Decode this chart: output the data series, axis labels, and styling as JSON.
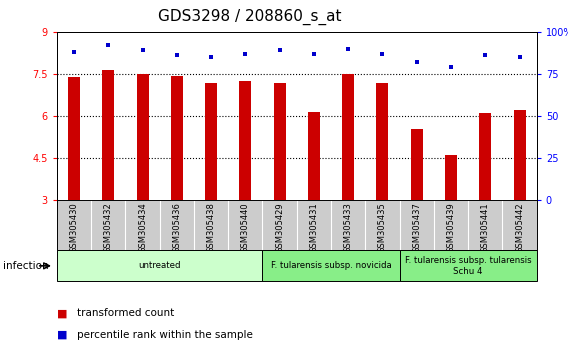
{
  "title": "GDS3298 / 208860_s_at",
  "samples": [
    "GSM305430",
    "GSM305432",
    "GSM305434",
    "GSM305436",
    "GSM305438",
    "GSM305440",
    "GSM305429",
    "GSM305431",
    "GSM305433",
    "GSM305435",
    "GSM305437",
    "GSM305439",
    "GSM305441",
    "GSM305442"
  ],
  "transformed_count": [
    7.4,
    7.65,
    7.48,
    7.44,
    7.18,
    7.23,
    7.18,
    6.15,
    7.5,
    7.18,
    5.55,
    4.62,
    6.1,
    6.2
  ],
  "percentile_rank": [
    88,
    92,
    89,
    86,
    85,
    87,
    89,
    87,
    90,
    87,
    82,
    79,
    86,
    85
  ],
  "ylim_left": [
    3,
    9
  ],
  "ylim_right": [
    0,
    100
  ],
  "yticks_left": [
    3,
    4.5,
    6,
    7.5,
    9
  ],
  "yticks_right": [
    0,
    25,
    50,
    75,
    100
  ],
  "bar_color": "#cc0000",
  "dot_color": "#0000cc",
  "bg_color": "#ffffff",
  "infection_label": "infection",
  "group_labels": [
    "untreated",
    "F. tularensis subsp. novicida",
    "F. tularensis subsp. tularensis\nSchu 4"
  ],
  "group_starts": [
    0,
    6,
    10
  ],
  "group_ends": [
    6,
    10,
    14
  ],
  "group_colors": [
    "#ccffcc",
    "#88ee88",
    "#88ee88"
  ],
  "legend_labels": [
    "transformed count",
    "percentile rank within the sample"
  ],
  "legend_colors": [
    "#cc0000",
    "#0000cc"
  ],
  "title_fontsize": 11,
  "tick_fontsize": 7,
  "bar_width": 0.35,
  "sample_box_color": "#cccccc"
}
